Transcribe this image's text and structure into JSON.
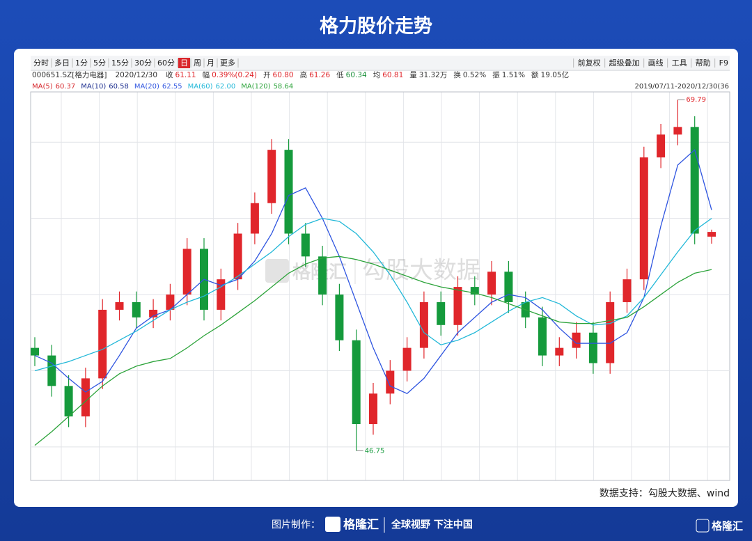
{
  "page_title": "格力股价走势",
  "toolbar": {
    "left": [
      "分时",
      "多日",
      "1分",
      "5分",
      "15分",
      "30分",
      "60分",
      "日",
      "周",
      "月",
      "更多"
    ],
    "active": "日",
    "right": [
      "前复权",
      "超级叠加",
      "画线",
      "工具",
      "帮助",
      "F9"
    ]
  },
  "quote": [
    {
      "label": "000651.SZ[格力电器]"
    },
    {
      "label": "2020/12/30"
    },
    {
      "label": "收",
      "value": "61.11",
      "color": "#e0262b"
    },
    {
      "label": "幅",
      "value": "0.39%(0.24)",
      "color": "#e0262b"
    },
    {
      "label": "开",
      "value": "60.80",
      "color": "#e0262b"
    },
    {
      "label": "高",
      "value": "61.26",
      "color": "#e0262b"
    },
    {
      "label": "低",
      "value": "60.34",
      "color": "#1a8f3a"
    },
    {
      "label": "均",
      "value": "60.81",
      "color": "#e0262b"
    },
    {
      "label": "量",
      "value": "31.32万"
    },
    {
      "label": "换",
      "value": "0.52%"
    },
    {
      "label": "振",
      "value": "1.51%"
    },
    {
      "label": "额",
      "value": "19.05亿"
    }
  ],
  "range": "2019/07/11-2020/12/30(36",
  "watermark": "勾股大数据",
  "watermark_logo": "格隆汇",
  "source": "数据支持：勾股大数据、wind",
  "footer": {
    "made_by": "图片制作：",
    "brand": "格隆汇",
    "slogan": "全球视野 下注中国",
    "corner_brand": "格隆汇"
  },
  "chart_data": {
    "type": "candlestick",
    "ylim": [
      44.8,
      70.3
    ],
    "yticks": [
      47,
      52,
      57,
      62,
      67
    ],
    "grid": true,
    "up_color": "#e0262b",
    "down_color": "#159a3c",
    "open": [
      53.5,
      53.0,
      51.0,
      49.0,
      51.5,
      56.0,
      56.5,
      55.5,
      56.0,
      57.0,
      60.0,
      56.0,
      58.0,
      61.0,
      63.0,
      66.5,
      61.0,
      59.5,
      57.0,
      54.0,
      48.5,
      50.5,
      52.0,
      53.5,
      56.5,
      55.0,
      57.5,
      57.0,
      58.5,
      56.5,
      55.5,
      53.0,
      53.5,
      54.5,
      52.5,
      56.5,
      58.0,
      66.0,
      67.5,
      68.0,
      60.8
    ],
    "high": [
      54.2,
      53.7,
      51.7,
      52.2,
      56.7,
      57.2,
      57.2,
      56.7,
      57.7,
      60.7,
      60.7,
      58.7,
      61.7,
      63.7,
      67.2,
      67.2,
      61.7,
      60.2,
      57.7,
      54.7,
      51.2,
      52.7,
      54.2,
      57.2,
      57.2,
      58.2,
      58.2,
      59.2,
      59.2,
      57.2,
      56.2,
      54.2,
      55.2,
      55.2,
      57.2,
      58.7,
      66.7,
      68.2,
      69.79,
      68.7,
      61.26
    ],
    "low": [
      52.3,
      50.3,
      48.3,
      48.3,
      50.8,
      55.3,
      54.8,
      54.8,
      55.3,
      56.3,
      55.3,
      55.3,
      57.3,
      60.3,
      62.3,
      60.3,
      58.8,
      56.3,
      53.3,
      46.75,
      47.8,
      49.8,
      51.3,
      52.8,
      54.3,
      54.3,
      56.3,
      56.3,
      55.8,
      54.8,
      52.3,
      52.3,
      52.8,
      51.8,
      51.8,
      55.8,
      57.3,
      65.3,
      66.8,
      60.3,
      60.34
    ],
    "close": [
      53.0,
      51.0,
      49.0,
      51.5,
      56.0,
      56.5,
      55.5,
      56.0,
      57.0,
      60.0,
      56.0,
      58.0,
      61.0,
      63.0,
      66.5,
      61.0,
      59.5,
      57.0,
      54.0,
      48.5,
      50.5,
      52.0,
      53.5,
      56.5,
      55.0,
      57.5,
      57.0,
      58.5,
      56.5,
      55.5,
      53.0,
      53.5,
      54.5,
      52.5,
      56.5,
      58.0,
      66.0,
      67.5,
      68.0,
      61.0,
      61.11
    ],
    "labeled_high": 38,
    "labeled_low": 19,
    "series": [
      {
        "name": "MA(5)",
        "color": "#d6262b",
        "value_label": "60.37"
      },
      {
        "name": "MA(10)",
        "color": "#1d2f8f",
        "value_label": "60.58"
      },
      {
        "name": "MA(20)",
        "color": "#2f55e0",
        "value_label": "62.55",
        "values": [
          53.0,
          52.5,
          51.5,
          50.6,
          51.3,
          53.0,
          54.8,
          55.6,
          56.0,
          57.0,
          58.0,
          57.6,
          58.0,
          59.2,
          61.0,
          63.5,
          64.0,
          62.0,
          59.5,
          56.5,
          53.5,
          51.0,
          50.5,
          51.5,
          53.0,
          54.5,
          55.5,
          56.5,
          57.0,
          56.8,
          56.0,
          54.8,
          53.8,
          53.8,
          53.8,
          54.5,
          56.8,
          61.5,
          65.5,
          66.5,
          62.55
        ]
      },
      {
        "name": "MA(60)",
        "color": "#22b8d8",
        "value_label": "62.00",
        "values": [
          52.0,
          52.3,
          52.6,
          53.0,
          53.4,
          54.0,
          54.6,
          55.3,
          56.0,
          56.5,
          56.9,
          57.5,
          58.2,
          59.0,
          59.8,
          60.8,
          61.6,
          62.0,
          61.8,
          61.0,
          59.8,
          58.3,
          56.5,
          54.5,
          53.7,
          54.0,
          54.5,
          55.2,
          55.9,
          56.5,
          56.8,
          56.4,
          55.6,
          55.0,
          55.1,
          55.6,
          56.8,
          58.3,
          59.8,
          61.2,
          62.0
        ]
      },
      {
        "name": "MA(120)",
        "color": "#2ca33a",
        "value_label": "58.64",
        "values": [
          47.1,
          48.0,
          49.0,
          50.0,
          51.0,
          51.8,
          52.3,
          52.6,
          52.8,
          53.5,
          54.3,
          55.0,
          55.8,
          56.6,
          57.5,
          58.4,
          59.0,
          59.4,
          59.5,
          59.3,
          59.0,
          58.6,
          58.2,
          57.8,
          57.5,
          57.3,
          57.1,
          56.8,
          56.4,
          56.0,
          55.6,
          55.2,
          55.1,
          55.1,
          55.3,
          55.5,
          56.2,
          57.0,
          57.8,
          58.4,
          58.64
        ]
      }
    ]
  }
}
